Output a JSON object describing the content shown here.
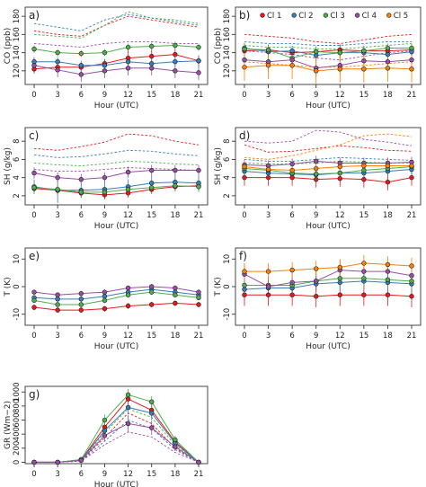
{
  "x": [
    0,
    3,
    6,
    9,
    12,
    15,
    18,
    21
  ],
  "xlabel": "Hour (UTC)",
  "colors": {
    "Cl 1": "#e41a1c",
    "Cl 2": "#377eb8",
    "Cl 3": "#4daf4a",
    "Cl 4": "#984ea3",
    "Cl 5": "#ff7f00"
  },
  "legend": {
    "placement": "top",
    "entries": [
      "Cl 1",
      "Cl 2",
      "Cl 3",
      "Cl 4",
      "Cl 5"
    ]
  },
  "chart_data": [
    {
      "type": "line",
      "panel": "a)",
      "ylabel": "CO (ppb)",
      "ylim": [
        105,
        190
      ],
      "yticks": [
        120,
        140,
        160,
        180
      ],
      "series": [
        {
          "name": "Cl 1",
          "values": [
            122,
            124,
            124,
            128,
            134,
            136,
            138,
            131
          ],
          "err": [
            5,
            5,
            5,
            5,
            12,
            8,
            8,
            6
          ],
          "dashed": [
            164,
            160,
            158,
            170,
            180,
            176,
            172,
            168
          ]
        },
        {
          "name": "Cl 2",
          "values": [
            130,
            130,
            126,
            126,
            130,
            128,
            130,
            131
          ],
          "err": [
            5,
            5,
            5,
            5,
            5,
            5,
            5,
            5
          ],
          "dashed": [
            172,
            168,
            164,
            176,
            182,
            178,
            174,
            170
          ]
        },
        {
          "name": "Cl 3",
          "values": [
            144,
            140,
            139,
            140,
            146,
            147,
            148,
            146
          ],
          "err": [
            4,
            4,
            4,
            4,
            4,
            4,
            4,
            4
          ],
          "dashed": [
            160,
            158,
            156,
            170,
            185,
            178,
            176,
            172
          ]
        },
        {
          "name": "Cl 4",
          "values": [
            126,
            121,
            116,
            120,
            123,
            123,
            120,
            118
          ],
          "err": [
            8,
            8,
            8,
            8,
            8,
            8,
            8,
            8
          ],
          "dashed": [
            150,
            148,
            146,
            150,
            152,
            152,
            150,
            150
          ]
        }
      ]
    },
    {
      "type": "line",
      "panel": "b)",
      "ylabel": "CO (ppb)",
      "ylim": [
        105,
        190
      ],
      "yticks": [
        120,
        140,
        160,
        180
      ],
      "series": [
        {
          "name": "Cl 1",
          "values": [
            142,
            143,
            140,
            141,
            143,
            142,
            142,
            143
          ],
          "err": [
            6,
            6,
            6,
            6,
            6,
            6,
            6,
            6
          ],
          "dashed": [
            160,
            158,
            156,
            152,
            150,
            154,
            158,
            160
          ]
        },
        {
          "name": "Cl 2",
          "values": [
            145,
            141,
            142,
            137,
            140,
            140,
            138,
            141
          ],
          "err": [
            6,
            6,
            6,
            6,
            6,
            6,
            6,
            6
          ],
          "dashed": [
            152,
            150,
            150,
            148,
            148,
            150,
            152,
            152
          ]
        },
        {
          "name": "Cl 3",
          "values": [
            144,
            143,
            134,
            141,
            140,
            142,
            145,
            145
          ],
          "err": [
            5,
            5,
            5,
            5,
            5,
            5,
            5,
            5
          ],
          "dashed": [
            148,
            146,
            146,
            144,
            144,
            146,
            148,
            150
          ]
        },
        {
          "name": "Cl 4",
          "values": [
            132,
            130,
            132,
            123,
            126,
            131,
            130,
            132
          ],
          "err": [
            10,
            10,
            10,
            10,
            10,
            10,
            10,
            10
          ],
          "dashed": [
            142,
            140,
            138,
            134,
            132,
            136,
            140,
            142
          ]
        },
        {
          "name": "Cl 5",
          "values": [
            124,
            126,
            126,
            120,
            122,
            122,
            123,
            122
          ],
          "err": [
            15,
            15,
            15,
            15,
            15,
            15,
            15,
            15
          ],
          "dashed": [
            130,
            128,
            126,
            124,
            124,
            126,
            128,
            130
          ]
        }
      ]
    },
    {
      "type": "line",
      "panel": "c)",
      "ylabel": "SH (g/kg)",
      "ylim": [
        1.0,
        9.5
      ],
      "yticks": [
        2,
        4,
        6,
        8
      ],
      "series": [
        {
          "name": "Cl 1",
          "values": [
            2.8,
            2.6,
            2.3,
            2.1,
            2.3,
            2.7,
            3.0,
            3.1
          ],
          "err": [
            0.5,
            0.5,
            0.5,
            0.5,
            0.5,
            0.5,
            0.5,
            0.5
          ],
          "dashed": [
            7.2,
            7.0,
            7.4,
            7.9,
            8.8,
            8.6,
            8.0,
            7.6
          ]
        },
        {
          "name": "Cl 2",
          "values": [
            3.0,
            2.6,
            2.6,
            2.7,
            3.0,
            3.4,
            3.5,
            3.4
          ],
          "err": [
            0.8,
            1.4,
            0.8,
            0.8,
            0.8,
            0.8,
            0.8,
            0.8
          ],
          "dashed": [
            6.5,
            6.2,
            6.3,
            6.6,
            7.0,
            6.9,
            6.6,
            6.4
          ]
        },
        {
          "name": "Cl 3",
          "values": [
            2.9,
            2.7,
            2.4,
            2.4,
            2.7,
            2.9,
            3.1,
            3.0
          ],
          "err": [
            0.6,
            0.6,
            0.6,
            0.6,
            0.6,
            0.6,
            0.6,
            0.6
          ],
          "dashed": [
            5.6,
            5.4,
            5.3,
            5.5,
            5.8,
            5.7,
            5.5,
            5.4
          ]
        },
        {
          "name": "Cl 4",
          "values": [
            4.5,
            4.0,
            3.8,
            4.0,
            4.6,
            4.8,
            4.8,
            4.8
          ],
          "err": [
            0.6,
            0.6,
            0.6,
            0.6,
            0.6,
            0.6,
            0.6,
            0.6
          ],
          "dashed": [
            4.9,
            4.7,
            4.7,
            4.9,
            5.1,
            5.0,
            4.9,
            4.8
          ]
        }
      ]
    },
    {
      "type": "line",
      "panel": "d)",
      "ylabel": "SH (g/kg)",
      "ylim": [
        1.0,
        9.5
      ],
      "yticks": [
        2,
        4,
        6,
        8
      ],
      "series": [
        {
          "name": "Cl 1",
          "values": [
            4.0,
            4.0,
            4.0,
            3.8,
            3.9,
            3.8,
            3.5,
            4.0
          ],
          "err": [
            0.9,
            0.9,
            0.9,
            0.9,
            0.9,
            0.9,
            0.9,
            0.9
          ],
          "dashed": [
            7.6,
            6.8,
            6.9,
            7.2,
            7.5,
            7.3,
            7.0,
            6.9
          ]
        },
        {
          "name": "Cl 2",
          "values": [
            4.7,
            4.5,
            4.4,
            4.3,
            4.5,
            4.5,
            4.7,
            4.9
          ],
          "err": [
            0.6,
            0.6,
            0.6,
            0.6,
            0.6,
            0.6,
            0.6,
            0.6
          ],
          "dashed": [
            6.0,
            5.8,
            5.8,
            6.0,
            6.2,
            6.1,
            6.0,
            5.9
          ]
        },
        {
          "name": "Cl 3",
          "values": [
            5.0,
            4.8,
            4.5,
            4.4,
            4.5,
            4.8,
            5.0,
            5.2
          ],
          "err": [
            0.6,
            0.6,
            0.6,
            0.6,
            0.6,
            0.6,
            0.6,
            0.6
          ],
          "dashed": [
            5.6,
            5.5,
            5.5,
            5.6,
            5.8,
            5.7,
            5.6,
            5.6
          ]
        },
        {
          "name": "Cl 4",
          "values": [
            5.4,
            5.3,
            5.5,
            5.8,
            5.6,
            5.6,
            5.6,
            5.7
          ],
          "err": [
            0.6,
            0.6,
            0.6,
            0.6,
            0.6,
            0.6,
            0.6,
            0.6
          ],
          "dashed": [
            8.0,
            7.8,
            8.0,
            9.2,
            9.0,
            8.2,
            7.9,
            7.5
          ]
        },
        {
          "name": "Cl 5",
          "values": [
            5.2,
            4.9,
            4.8,
            5.0,
            5.2,
            5.3,
            5.3,
            5.3
          ],
          "err": [
            0.7,
            0.7,
            0.7,
            0.7,
            0.7,
            0.7,
            0.7,
            0.7
          ],
          "dashed": [
            6.2,
            6.0,
            6.4,
            7.0,
            7.6,
            8.6,
            8.8,
            8.5
          ]
        }
      ]
    },
    {
      "type": "line",
      "panel": "e)",
      "ylabel": "T (K)",
      "ylim": [
        -14,
        14
      ],
      "yticks": [
        -10,
        0,
        10
      ],
      "series": [
        {
          "name": "Cl 1",
          "values": [
            -7.5,
            -8.5,
            -8.5,
            -8.0,
            -7.0,
            -6.5,
            -6.0,
            -6.5
          ],
          "err": [
            1.0,
            1.0,
            1.0,
            1.0,
            1.0,
            1.0,
            1.0,
            1.0
          ]
        },
        {
          "name": "Cl 2",
          "values": [
            -4.0,
            -4.5,
            -4.5,
            -3.5,
            -2.0,
            -1.0,
            -2.0,
            -3.0
          ],
          "err": [
            1.0,
            1.0,
            1.0,
            1.0,
            1.0,
            1.0,
            1.0,
            1.0
          ]
        },
        {
          "name": "Cl 3",
          "values": [
            -5.0,
            -6.5,
            -6.5,
            -5.0,
            -3.0,
            -2.0,
            -3.0,
            -4.0
          ],
          "err": [
            1.0,
            1.0,
            1.0,
            1.0,
            1.0,
            1.0,
            1.0,
            1.0
          ]
        },
        {
          "name": "Cl 4",
          "values": [
            -2.0,
            -3.0,
            -2.5,
            -2.0,
            -0.5,
            0.0,
            -0.5,
            -2.0
          ],
          "err": [
            1.0,
            1.0,
            1.0,
            1.0,
            1.0,
            1.0,
            1.0,
            1.0
          ]
        }
      ]
    },
    {
      "type": "line",
      "panel": "f)",
      "ylabel": "T (K)",
      "ylim": [
        -14,
        14
      ],
      "yticks": [
        -10,
        0,
        10
      ],
      "series": [
        {
          "name": "Cl 1",
          "values": [
            -3.0,
            -3.0,
            -3.0,
            -3.5,
            -3.0,
            -3.0,
            -3.0,
            -3.5
          ],
          "err": [
            4.0,
            4.0,
            4.0,
            4.0,
            4.0,
            4.0,
            4.0,
            4.0
          ]
        },
        {
          "name": "Cl 2",
          "values": [
            -1.0,
            -0.5,
            -0.5,
            1.0,
            1.5,
            2.0,
            1.5,
            1.0
          ],
          "err": [
            3.0,
            3.0,
            3.0,
            3.0,
            3.0,
            3.0,
            3.0,
            3.0
          ]
        },
        {
          "name": "Cl 3",
          "values": [
            0.5,
            0.5,
            0.5,
            2.0,
            3.0,
            3.0,
            2.5,
            2.0
          ],
          "err": [
            3.0,
            3.0,
            3.0,
            3.0,
            3.0,
            3.0,
            3.0,
            3.0
          ]
        },
        {
          "name": "Cl 4",
          "values": [
            4.5,
            0.0,
            1.5,
            2.0,
            6.0,
            5.5,
            5.5,
            4.0
          ],
          "err": [
            3.5,
            3.5,
            3.5,
            3.5,
            3.5,
            3.5,
            3.5,
            3.5
          ]
        },
        {
          "name": "Cl 5",
          "values": [
            5.5,
            5.5,
            6.0,
            6.5,
            7.0,
            8.5,
            8.0,
            7.5
          ],
          "err": [
            3.0,
            3.0,
            3.0,
            3.0,
            3.0,
            3.0,
            3.0,
            3.0
          ]
        }
      ]
    },
    {
      "type": "line",
      "panel": "g)",
      "ylabel": "GR (Wm−2)",
      "ylim": [
        -20,
        1080
      ],
      "yticks": [
        0,
        200,
        400,
        600,
        800,
        1000
      ],
      "series": [
        {
          "name": "Cl 1",
          "values": [
            0,
            0,
            30,
            500,
            900,
            740,
            290,
            0
          ],
          "err": [
            0,
            0,
            20,
            80,
            100,
            100,
            60,
            0
          ],
          "dashed": [
            0,
            0,
            20,
            350,
            700,
            550,
            200,
            0
          ]
        },
        {
          "name": "Cl 2",
          "values": [
            0,
            0,
            30,
            450,
            780,
            700,
            270,
            0
          ],
          "err": [
            0,
            0,
            20,
            80,
            100,
            100,
            60,
            0
          ],
          "dashed": [
            0,
            0,
            15,
            300,
            600,
            480,
            180,
            0
          ]
        },
        {
          "name": "Cl 3",
          "values": [
            0,
            0,
            40,
            600,
            960,
            860,
            320,
            0
          ],
          "err": [
            0,
            0,
            20,
            80,
            80,
            80,
            60,
            0
          ],
          "dashed": [
            0,
            0,
            25,
            420,
            760,
            640,
            240,
            0
          ]
        },
        {
          "name": "Cl 4",
          "values": [
            0,
            0,
            25,
            380,
            550,
            490,
            220,
            0
          ],
          "err": [
            0,
            0,
            20,
            80,
            120,
            100,
            60,
            0
          ],
          "dashed": [
            0,
            0,
            15,
            250,
            430,
            360,
            140,
            0
          ]
        }
      ]
    }
  ]
}
